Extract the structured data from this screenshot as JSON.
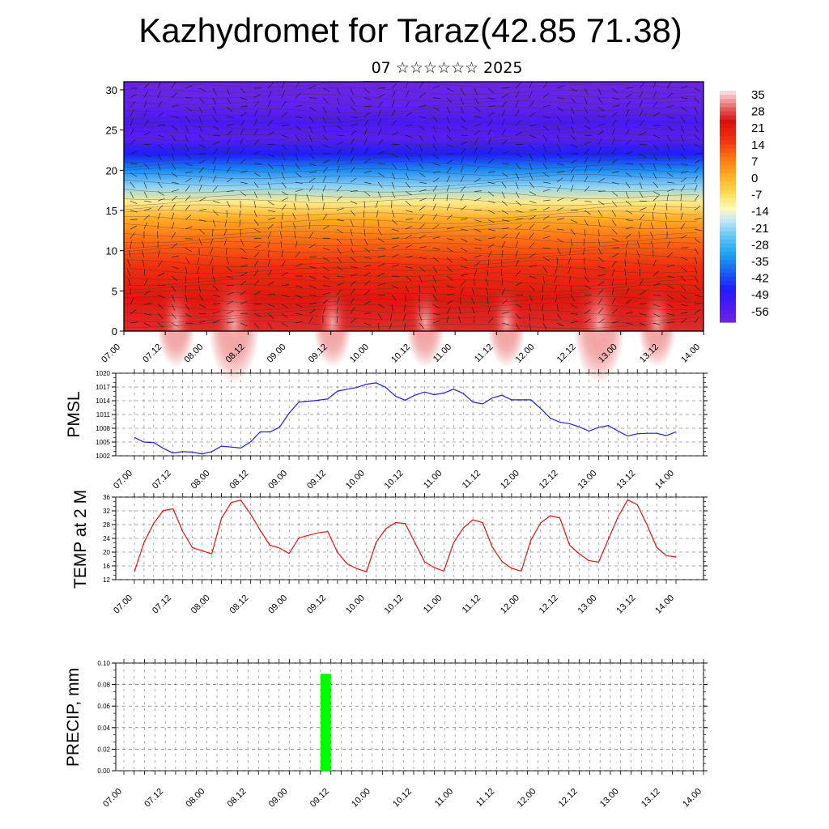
{
  "title": "Kazhydromet for Taraz(42.85 71.38)",
  "subtitle": "07 ☆☆☆☆☆☆ 2025",
  "x_tick_labels": [
    "07.00",
    "07.12",
    "08.00",
    "08.12",
    "09.00",
    "09.12",
    "10.00",
    "10.12",
    "11.00",
    "11.12",
    "12.00",
    "12.12",
    "13.00",
    "13.12",
    "14.00"
  ],
  "colors": {
    "pmsl_line": "#1f1fd0",
    "temp_line": "#e01010",
    "precip_bar": "#00ff00"
  },
  "chart_data": [
    {
      "type": "heatmap",
      "description_key": "temperature-height",
      "xlabel": "",
      "ylabel": "",
      "ylim": [
        0,
        31
      ],
      "y_ticks": [
        0,
        5,
        10,
        15,
        20,
        25,
        30
      ],
      "colorbar_labels": [
        "35",
        "28",
        "21",
        "14",
        "7",
        "0",
        "-7",
        "-14",
        "-21",
        "-28",
        "-35",
        "-42",
        "-49",
        "-56"
      ],
      "colorbar_range": [
        -60,
        38
      ],
      "overlay": "wind-vectors"
    },
    {
      "type": "line",
      "ylabel": "PMSL",
      "ylim": [
        1002,
        1020
      ],
      "y_ticks": [
        "1002",
        "1005",
        "1008",
        "1011",
        "1014",
        "1017",
        "1020"
      ],
      "x_start": 0,
      "x_step": 3,
      "values": [
        1006.0,
        1005.0,
        1004.9,
        1003.6,
        1002.6,
        1002.9,
        1002.8,
        1002.4,
        1002.9,
        1004.1,
        1003.9,
        1003.7,
        1005.0,
        1007.2,
        1007.2,
        1008.2,
        1011.3,
        1013.7,
        1013.9,
        1014.1,
        1014.4,
        1016.1,
        1016.5,
        1016.9,
        1017.6,
        1017.9,
        1016.9,
        1015.0,
        1014.1,
        1015.2,
        1015.9,
        1015.3,
        1015.7,
        1016.5,
        1015.6,
        1013.7,
        1013.3,
        1014.6,
        1015.2,
        1014.2,
        1014.2,
        1014.2,
        1012.3,
        1010.2,
        1009.3,
        1009.0,
        1008.3,
        1007.4,
        1008.2,
        1008.6,
        1007.4,
        1006.3,
        1006.8,
        1006.9,
        1006.9,
        1006.4,
        1007.2
      ]
    },
    {
      "type": "line",
      "ylabel": "TEMP at 2 M",
      "ylim": [
        12,
        36
      ],
      "y_ticks": [
        "12",
        "16",
        "20",
        "24",
        "28",
        "32",
        "36"
      ],
      "x_start": 0,
      "x_step": 3,
      "values": [
        14.3,
        22.8,
        28.4,
        32.1,
        32.6,
        26.0,
        21.3,
        20.4,
        19.5,
        29.8,
        34.4,
        35.1,
        31.1,
        26.4,
        22.0,
        21.2,
        19.6,
        24.1,
        24.9,
        25.6,
        26.0,
        19.9,
        16.6,
        15.2,
        14.3,
        22.9,
        26.8,
        28.6,
        28.3,
        22.8,
        17.2,
        15.5,
        14.5,
        22.7,
        27.0,
        29.4,
        28.6,
        21.5,
        17.3,
        15.3,
        14.5,
        23.5,
        28.5,
        30.6,
        29.9,
        22.0,
        19.5,
        17.5,
        17.1,
        23.7,
        30.2,
        35.2,
        33.8,
        27.9,
        21.4,
        19.0,
        18.6
      ]
    },
    {
      "type": "bar",
      "ylabel": "PRECIP, mm",
      "ylim": [
        0,
        0.1
      ],
      "y_ticks": [
        "0.00",
        "0.02",
        "0.04",
        "0.06",
        "0.08",
        "0.10"
      ],
      "bars": [
        {
          "x_start": 57,
          "x_end": 60,
          "value": 0.09
        }
      ]
    }
  ]
}
